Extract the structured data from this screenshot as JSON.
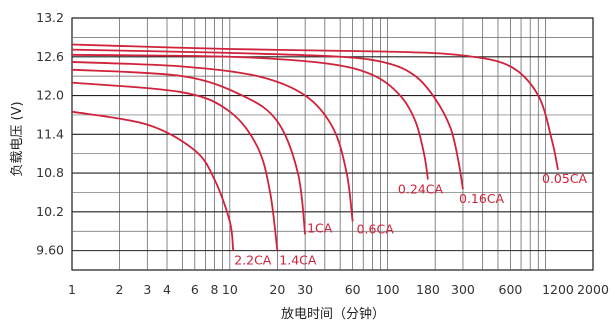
{
  "chart_data": {
    "type": "line",
    "xlabel": "放电时间（分钟）",
    "ylabel": "负载电压 (V)",
    "x_scale": "log",
    "xlim": [
      1,
      2000
    ],
    "ylim": [
      9.3,
      13.2
    ],
    "grid": true,
    "line_color": "#d0223a",
    "x_ticks": [
      {
        "value": 1,
        "label": "1"
      },
      {
        "value": 2,
        "label": "2"
      },
      {
        "value": 3,
        "label": "3"
      },
      {
        "value": 4,
        "label": "4"
      },
      {
        "value": 6,
        "label": "6"
      },
      {
        "value": 8,
        "label": "8"
      },
      {
        "value": 10,
        "label": "10"
      },
      {
        "value": 20,
        "label": "20"
      },
      {
        "value": 30,
        "label": "30"
      },
      {
        "value": 60,
        "label": "60"
      },
      {
        "value": 100,
        "label": "100"
      },
      {
        "value": 180,
        "label": "180"
      },
      {
        "value": 300,
        "label": "300"
      },
      {
        "value": 600,
        "label": "600"
      },
      {
        "value": 1200,
        "label": "1200"
      },
      {
        "value": 2000,
        "label": "2000"
      }
    ],
    "y_ticks": [
      {
        "value": 13.2,
        "label": "13.2"
      },
      {
        "value": 12.6,
        "label": "12.6"
      },
      {
        "value": 12.0,
        "label": "12.0"
      },
      {
        "value": 11.4,
        "label": "11.4"
      },
      {
        "value": 10.8,
        "label": "10.8"
      },
      {
        "value": 10.2,
        "label": "10.2"
      },
      {
        "value": 9.6,
        "label": "9.60"
      }
    ],
    "series": [
      {
        "name": "0.05CA",
        "x": [
          1,
          10,
          100,
          300,
          600,
          900,
          1100,
          1200
        ],
        "y": [
          12.79,
          12.72,
          12.68,
          12.62,
          12.45,
          12.0,
          11.3,
          10.85
        ]
      },
      {
        "name": "0.16CA",
        "x": [
          1,
          10,
          50,
          100,
          150,
          200,
          250,
          280,
          300
        ],
        "y": [
          12.71,
          12.66,
          12.6,
          12.5,
          12.3,
          11.95,
          11.5,
          11.0,
          10.55
        ]
      },
      {
        "name": "0.24CA",
        "x": [
          1,
          10,
          40,
          80,
          120,
          150,
          170,
          180
        ],
        "y": [
          12.63,
          12.6,
          12.5,
          12.32,
          12.0,
          11.6,
          11.1,
          10.7
        ]
      },
      {
        "name": "0.6CA",
        "x": [
          1,
          5,
          15,
          30,
          45,
          55,
          60
        ],
        "y": [
          12.52,
          12.45,
          12.3,
          12.0,
          11.5,
          10.8,
          10.05
        ]
      },
      {
        "name": "1CA",
        "x": [
          1,
          5,
          12,
          20,
          27,
          30
        ],
        "y": [
          12.4,
          12.3,
          12.0,
          11.6,
          10.8,
          9.85
        ]
      },
      {
        "name": "1.4CA",
        "x": [
          1,
          5,
          10,
          15,
          18,
          20
        ],
        "y": [
          12.2,
          12.05,
          11.75,
          11.2,
          10.5,
          9.6
        ]
      },
      {
        "name": "2.2CA",
        "x": [
          1,
          3,
          6,
          8,
          10,
          10.5
        ],
        "y": [
          11.75,
          11.55,
          11.15,
          10.7,
          10.05,
          9.6
        ]
      }
    ],
    "annotations": [
      "0.05CA",
      "0.16CA",
      "0.24CA",
      "0.6CA",
      "1CA",
      "1.4CA",
      "2.2CA"
    ]
  }
}
